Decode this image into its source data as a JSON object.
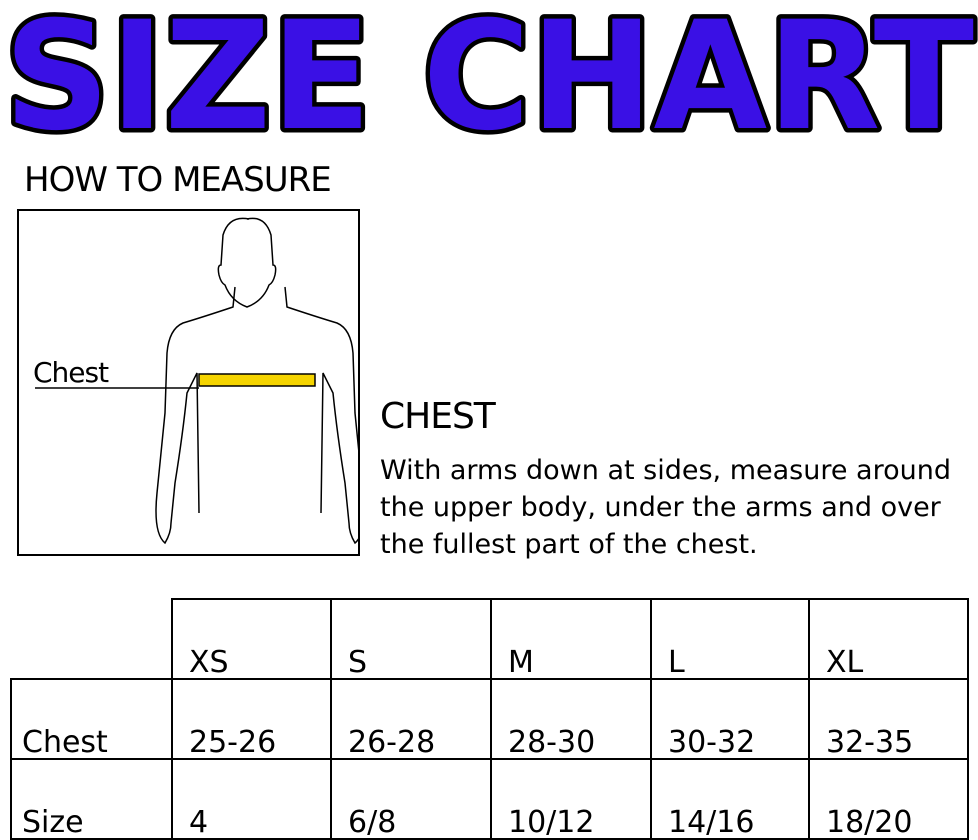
{
  "title": "SIZE CHART",
  "title_color": "#3a10e5",
  "how_to_measure": "HOW TO MEASURE",
  "figure_label": "Chest",
  "chest_heading": "CHEST",
  "chest_description": "With arms down at sides, measure around the upper body, under the arms and over the fullest part of the chest.",
  "table": {
    "columns": [
      "XS",
      "S",
      "M",
      "L",
      "XL"
    ],
    "rows": [
      {
        "label": "Chest",
        "values": [
          "25-26",
          "26-28",
          "28-30",
          "30-32",
          "32-35"
        ]
      },
      {
        "label": "Size",
        "values": [
          "4",
          "6/8",
          "10/12",
          "14/16",
          "18/20"
        ]
      }
    ]
  }
}
